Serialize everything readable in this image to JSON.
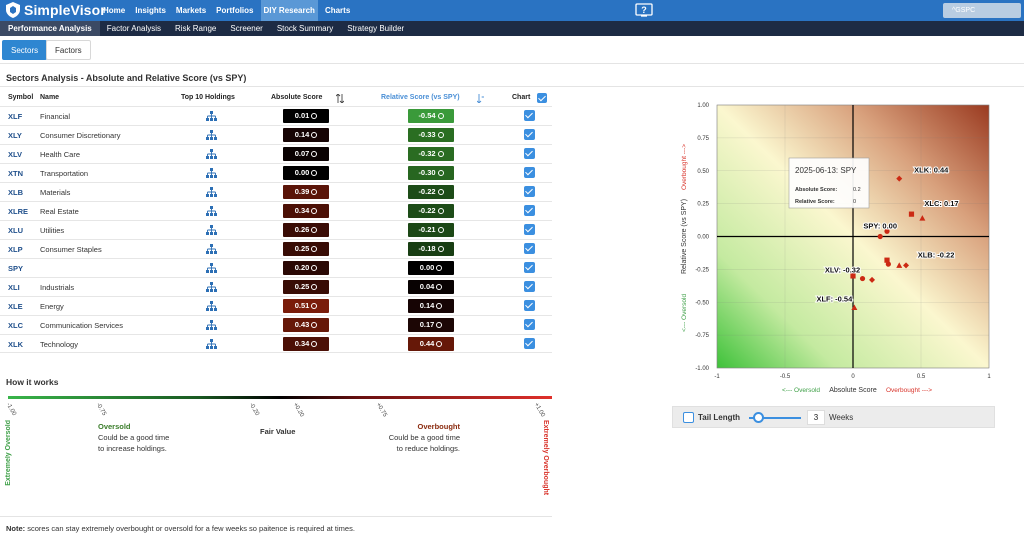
{
  "app": {
    "name": "SimpleVisor"
  },
  "nav": [
    {
      "label": "Home",
      "active": false
    },
    {
      "label": "Insights",
      "active": false
    },
    {
      "label": "Markets",
      "active": false
    },
    {
      "label": "Portfolios",
      "active": false
    },
    {
      "label": "DIY Research",
      "active": true
    },
    {
      "label": "Charts",
      "active": false
    }
  ],
  "search": {
    "value": "^GSPC"
  },
  "subnav": [
    {
      "label": "Performance Analysis",
      "active": true
    },
    {
      "label": "Factor Analysis",
      "active": false
    },
    {
      "label": "Risk Range",
      "active": false
    },
    {
      "label": "Screener",
      "active": false
    },
    {
      "label": "Stock Summary",
      "active": false
    },
    {
      "label": "Strategy Builder",
      "active": false
    }
  ],
  "tabs": [
    {
      "label": "Sectors",
      "active": true
    },
    {
      "label": "Factors",
      "active": false
    }
  ],
  "section_title": "Sectors Analysis - Absolute and Relative Score (vs SPY)",
  "table": {
    "headers": {
      "symbol": "Symbol",
      "name": "Name",
      "holdings": "Top 10 Holdings",
      "absolute": "Absolute Score",
      "relative": "Relative Score (vs SPY)",
      "chart": "Chart"
    },
    "rows": [
      {
        "symbol": "XLF",
        "name": "Financial",
        "abs": "0.01",
        "rel": "-0.54",
        "abs_color": "#000000",
        "rel_color": "#3a9a3a"
      },
      {
        "symbol": "XLY",
        "name": "Consumer Discretionary",
        "abs": "0.14",
        "rel": "-0.33",
        "abs_color": "#160404",
        "rel_color": "#2a6e22"
      },
      {
        "symbol": "XLV",
        "name": "Health Care",
        "abs": "0.07",
        "rel": "-0.32",
        "abs_color": "#0a0202",
        "rel_color": "#2a6c22"
      },
      {
        "symbol": "XTN",
        "name": "Transportation",
        "abs": "0.00",
        "rel": "-0.30",
        "abs_color": "#000000",
        "rel_color": "#276620"
      },
      {
        "symbol": "XLB",
        "name": "Materials",
        "abs": "0.39",
        "rel": "-0.22",
        "abs_color": "#5a1408",
        "rel_color": "#1d4c18"
      },
      {
        "symbol": "XLRE",
        "name": "Real Estate",
        "abs": "0.34",
        "rel": "-0.22",
        "abs_color": "#4c1006",
        "rel_color": "#1d4c18"
      },
      {
        "symbol": "XLU",
        "name": "Utilities",
        "abs": "0.26",
        "rel": "-0.21",
        "abs_color": "#3a0c05",
        "rel_color": "#1c4816"
      },
      {
        "symbol": "XLP",
        "name": "Consumer Staples",
        "abs": "0.25",
        "rel": "-0.18",
        "abs_color": "#380c05",
        "rel_color": "#183e13"
      },
      {
        "symbol": "SPY",
        "name": "",
        "abs": "0.20",
        "rel": "0.00",
        "abs_color": "#2a0804",
        "rel_color": "#000000"
      },
      {
        "symbol": "XLI",
        "name": "Industrials",
        "abs": "0.25",
        "rel": "0.04",
        "abs_color": "#380c05",
        "rel_color": "#080202"
      },
      {
        "symbol": "XLE",
        "name": "Energy",
        "abs": "0.51",
        "rel": "0.14",
        "abs_color": "#7a1c0a",
        "rel_color": "#160404"
      },
      {
        "symbol": "XLC",
        "name": "Communication Services",
        "abs": "0.43",
        "rel": "0.17",
        "abs_color": "#661808",
        "rel_color": "#1c0605"
      },
      {
        "symbol": "XLK",
        "name": "Technology",
        "abs": "0.34",
        "rel": "0.44",
        "abs_color": "#4c1006",
        "rel_color": "#661808"
      }
    ]
  },
  "how_it_works": {
    "title": "How it works",
    "ticks": [
      "-1.00",
      "-0.75",
      "-0.20",
      "+0.20",
      "+0.75",
      "+1.00"
    ],
    "extreme_oversold": "Extremely Oversold",
    "extreme_overbought": "Extremely Overbought",
    "oversold_head": "Oversold",
    "oversold_text1": "Could be a good time",
    "oversold_text2": "to increase holdings.",
    "fair_value": "Fair Value",
    "overbought_head": "Overbought",
    "overbought_text1": "Could be a good time",
    "overbought_text2": "to reduce holdings."
  },
  "note": {
    "label": "Note:",
    "text": " scores can stay extremely overbought or oversold for a few weeks so paitence is required at times."
  },
  "chart_data": {
    "type": "scatter",
    "xlabel": "Absolute Score",
    "ylabel": "Relative Score (vs SPY)",
    "x_left_label": "<--- Oversold",
    "x_right_label": "Overbought --->",
    "y_top_label": "Overbought --->",
    "y_bottom_label": "<--- Oversold",
    "xlim": [
      -1,
      1
    ],
    "ylim": [
      -1,
      1
    ],
    "x_ticks": [
      "-1",
      "-0.5",
      "0",
      "0.5",
      "1"
    ],
    "y_ticks": [
      "1.00",
      "0.75",
      "0.50",
      "0.25",
      "0.00",
      "-0.25",
      "-0.50",
      "-0.75",
      "-1.00"
    ],
    "labels": [
      {
        "text": "XLK: 0.44",
        "x": 0.34,
        "y": 0.44
      },
      {
        "text": "XLC: 0.17",
        "x": 0.43,
        "y": 0.17
      },
      {
        "text": "SPY: 0.00",
        "x": 0.2,
        "y": 0.0
      },
      {
        "text": "XLB: -0.22",
        "x": 0.39,
        "y": -0.22
      },
      {
        "text": "XLV: -0.32",
        "x": 0.07,
        "y": -0.32
      },
      {
        "text": "XLF: -0.54",
        "x": 0.01,
        "y": -0.54
      }
    ],
    "points": [
      {
        "x": 0.34,
        "y": 0.44,
        "shape": "diamond"
      },
      {
        "x": 0.43,
        "y": 0.17,
        "shape": "square"
      },
      {
        "x": 0.51,
        "y": 0.14,
        "shape": "triangle"
      },
      {
        "x": 0.2,
        "y": 0.0,
        "shape": "circle"
      },
      {
        "x": 0.25,
        "y": 0.04,
        "shape": "circle"
      },
      {
        "x": 0.39,
        "y": -0.22,
        "shape": "diamond"
      },
      {
        "x": 0.34,
        "y": -0.22,
        "shape": "triangle"
      },
      {
        "x": 0.26,
        "y": -0.21,
        "shape": "circle"
      },
      {
        "x": 0.25,
        "y": -0.18,
        "shape": "square"
      },
      {
        "x": 0.14,
        "y": -0.33,
        "shape": "diamond"
      },
      {
        "x": 0.07,
        "y": -0.32,
        "shape": "circle"
      },
      {
        "x": 0.0,
        "y": -0.3,
        "shape": "square"
      },
      {
        "x": 0.01,
        "y": -0.54,
        "shape": "triangle"
      }
    ],
    "tooltip": {
      "title": "2025-06-13: SPY",
      "abs_label": "Absolute Score:",
      "abs_value": "0.2",
      "rel_label": "Relative Score:",
      "rel_value": "0"
    },
    "marker_color": "#cc2a14",
    "grid": true
  },
  "tail": {
    "label": "Tail Length",
    "weeks": "3",
    "weeks_label": "Weeks"
  }
}
